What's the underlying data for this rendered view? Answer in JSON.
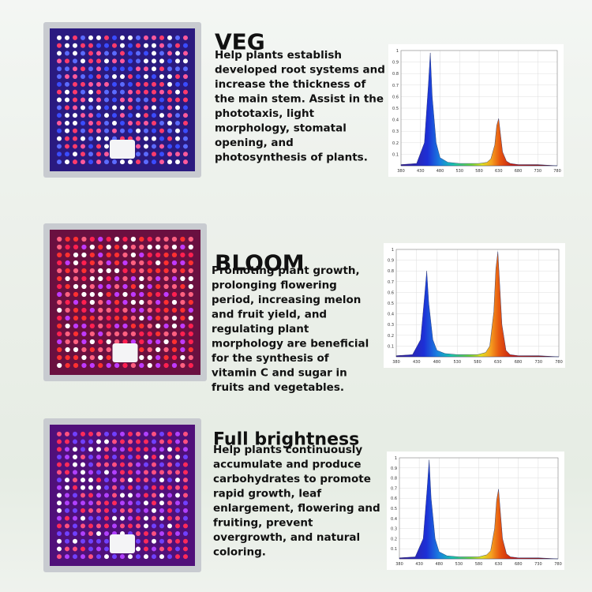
{
  "sections": [
    {
      "title": "VEG",
      "text": [
        "Help plants establish",
        "developed root systems and",
        "increase the thickness of",
        "the main stem. Assist in the",
        "phototaxis, light",
        "morphology, stomatal",
        "opening, and",
        "photosynthesis of plants."
      ],
      "chart_data": {
        "type": "area",
        "xlim": [
          380,
          780
        ],
        "ylim": [
          0,
          1
        ],
        "xticks": [
          380,
          430,
          480,
          530,
          580,
          630,
          680,
          730,
          780
        ],
        "yticks": [
          0.1,
          0.2,
          0.3,
          0.4,
          0.5,
          0.6,
          0.7,
          0.8,
          0.9,
          1
        ],
        "x": [
          380,
          420,
          440,
          450,
          455,
          460,
          470,
          480,
          500,
          530,
          560,
          580,
          600,
          610,
          620,
          625,
          630,
          640,
          650,
          660,
          680,
          730,
          780
        ],
        "values": [
          0.01,
          0.02,
          0.2,
          0.7,
          0.98,
          0.6,
          0.2,
          0.07,
          0.03,
          0.02,
          0.02,
          0.02,
          0.03,
          0.06,
          0.18,
          0.35,
          0.41,
          0.12,
          0.04,
          0.02,
          0.01,
          0.01,
          0
        ]
      }
    },
    {
      "title": "BLOOM",
      "text": [
        "Promoting plant growth,",
        "prolonging flowering",
        "period, increasing melon",
        "and fruit yield, and",
        "regulating plant",
        "morphology are beneficial",
        "for the synthesis of",
        "vitamin C and sugar in",
        "fruits and vegetables."
      ],
      "chart_data": {
        "type": "area",
        "xlim": [
          380,
          780
        ],
        "ylim": [
          0,
          1
        ],
        "xticks": [
          380,
          430,
          480,
          530,
          580,
          630,
          680,
          730,
          780
        ],
        "yticks": [
          0.1,
          0.2,
          0.3,
          0.4,
          0.5,
          0.6,
          0.7,
          0.8,
          0.9,
          1
        ],
        "x": [
          380,
          420,
          440,
          450,
          455,
          460,
          470,
          480,
          500,
          530,
          560,
          580,
          600,
          610,
          620,
          625,
          630,
          640,
          650,
          660,
          680,
          730,
          780
        ],
        "values": [
          0.01,
          0.02,
          0.16,
          0.58,
          0.8,
          0.5,
          0.16,
          0.06,
          0.03,
          0.02,
          0.02,
          0.02,
          0.04,
          0.1,
          0.42,
          0.82,
          0.98,
          0.3,
          0.06,
          0.02,
          0.01,
          0.01,
          0
        ]
      }
    },
    {
      "title": "Full brightness",
      "text": [
        "Help plants continuously",
        "accumulate and produce",
        "carbohydrates to promote",
        "rapid growth, leaf",
        "enlargement, flowering and",
        "fruiting, prevent",
        "overgrowth, and natural",
        "coloring."
      ],
      "chart_data": {
        "type": "area",
        "xlim": [
          380,
          780
        ],
        "ylim": [
          0,
          1
        ],
        "xticks": [
          380,
          430,
          480,
          530,
          580,
          630,
          680,
          730,
          780
        ],
        "yticks": [
          0.1,
          0.2,
          0.3,
          0.4,
          0.5,
          0.6,
          0.7,
          0.8,
          0.9,
          1
        ],
        "x": [
          380,
          420,
          440,
          450,
          455,
          460,
          470,
          480,
          500,
          530,
          560,
          580,
          600,
          610,
          620,
          625,
          630,
          640,
          650,
          660,
          680,
          730,
          780
        ],
        "values": [
          0.01,
          0.02,
          0.2,
          0.7,
          0.98,
          0.6,
          0.2,
          0.07,
          0.03,
          0.02,
          0.02,
          0.02,
          0.04,
          0.08,
          0.3,
          0.58,
          0.69,
          0.2,
          0.05,
          0.02,
          0.01,
          0.01,
          0
        ]
      }
    }
  ]
}
